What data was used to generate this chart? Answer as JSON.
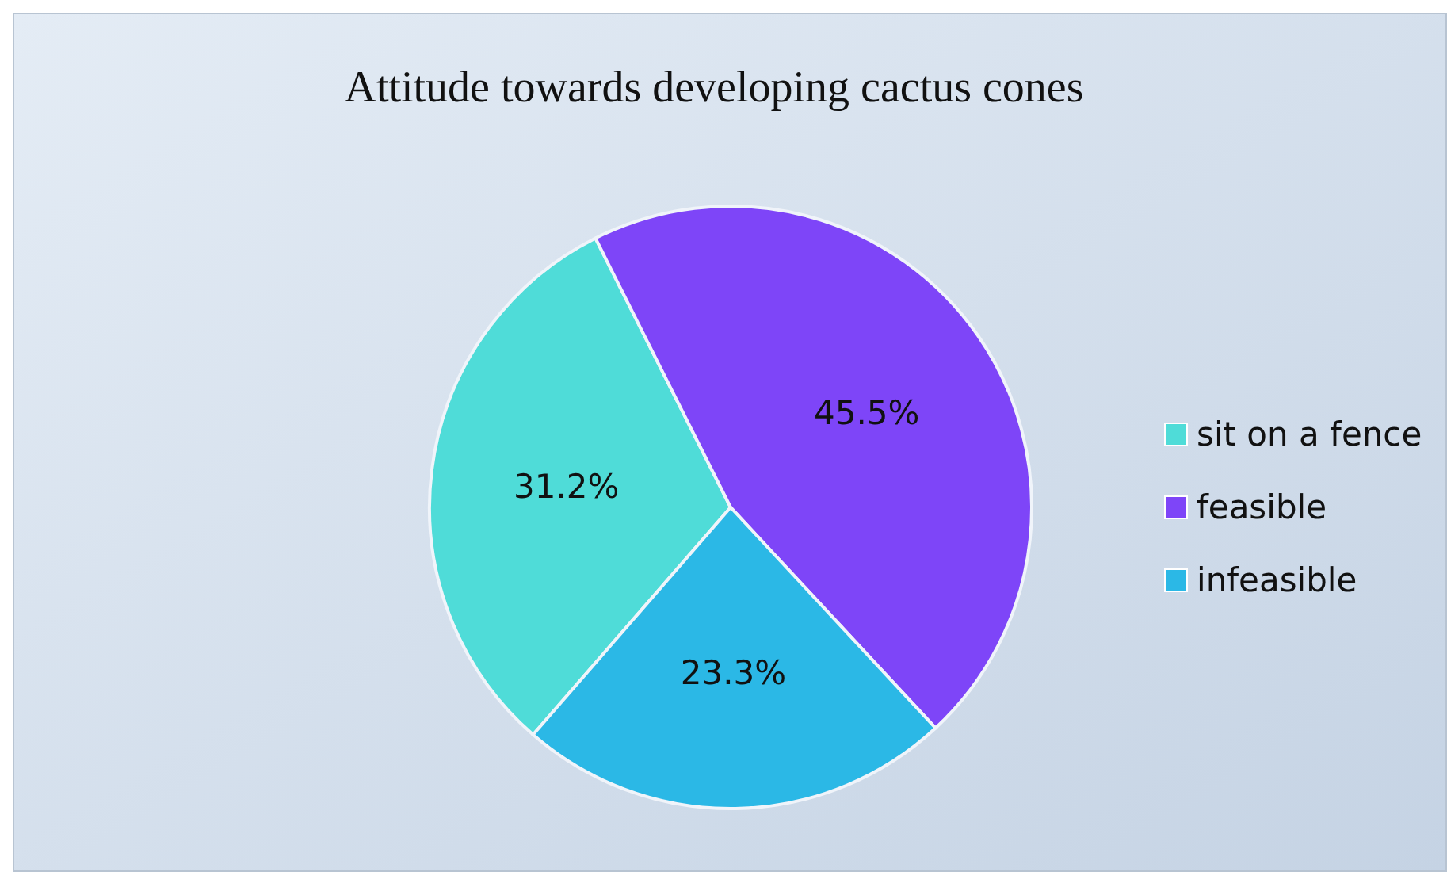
{
  "chart_data": {
    "type": "pie",
    "title": "Attitude towards developing cactus cones",
    "categories": [
      "sit on a fence",
      "feasible",
      "infeasible"
    ],
    "values": [
      31.2,
      45.5,
      23.3
    ],
    "value_labels": [
      "31.2%",
      "45.5%",
      "23.3%"
    ],
    "colors": [
      "#4fdcd8",
      "#7e45f8",
      "#2bb8e6"
    ],
    "legend": "right"
  }
}
